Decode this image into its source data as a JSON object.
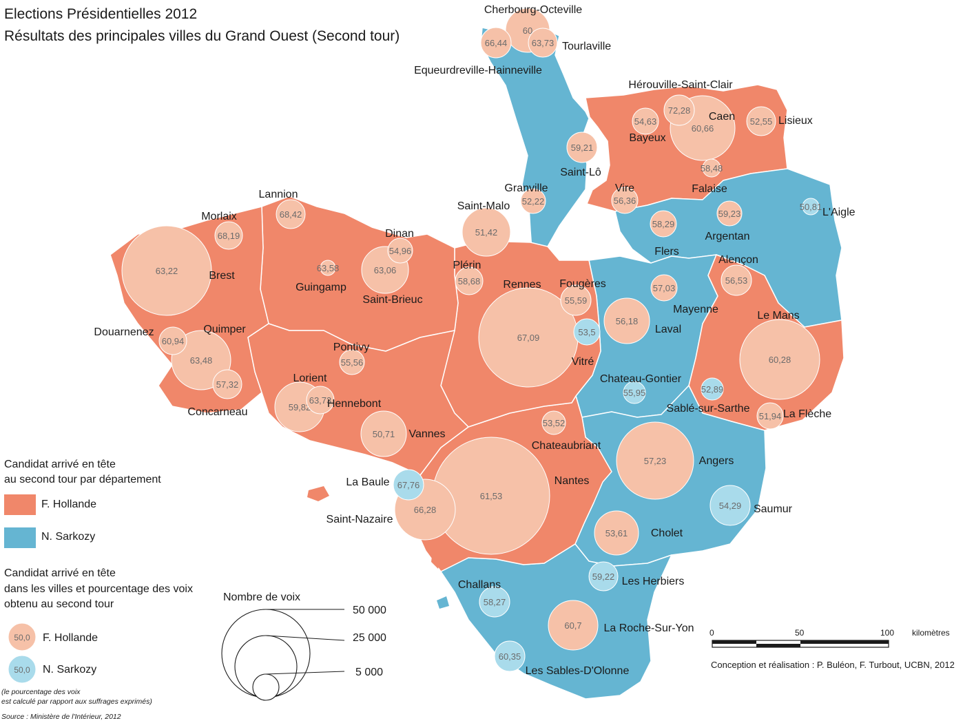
{
  "title": {
    "line1": "Elections Présidentielles 2012",
    "line2": "Résultats des principales villes du Grand Ouest (Second tour)"
  },
  "colors": {
    "hollande_dept": "#f0876a",
    "sarkozy_dept": "#65b5d2",
    "hollande_city": "#f6c1a8",
    "sarkozy_city": "#a9dbeb"
  },
  "legend": {
    "dept_title_1": "Candidat arrivé en tête",
    "dept_title_2": "au second tour par département",
    "hollande": "F. Hollande",
    "sarkozy": "N. Sarkozy",
    "city_title_1": "Candidat arrivé en tête",
    "city_title_2": "dans les villes et pourcentage des voix",
    "city_title_3": "obtenu au second tour",
    "sample_value": "50,0",
    "size_title": "Nombre de voix",
    "size_50000": "50 000",
    "size_25000": "25 000",
    "size_5000": "5 000"
  },
  "notes": {
    "pct_1": "(le pourcentage des voix",
    "pct_2": "est calculé par rapport aux suffrages exprimés)",
    "source": "Source : Ministère de l'Intérieur, 2012",
    "credit": "Conception et réalisation : P. Buléon, F. Turbout, UCBN, 2012"
  },
  "scale": {
    "tick_0": "0",
    "tick_50": "50",
    "tick_100": "100",
    "unit": "kilomètres"
  },
  "cities": [
    {
      "name": "Cherbourg-Octeville",
      "value": "60",
      "winner": "hollande"
    },
    {
      "name": "Equeurdreville-Hainneville",
      "value": "66,44",
      "winner": "hollande"
    },
    {
      "name": "Tourlaville",
      "value": "63,73",
      "winner": "hollande"
    },
    {
      "name": "Hérouville-Saint-Clair",
      "value": "72,28",
      "winner": "hollande"
    },
    {
      "name": "Caen",
      "value": "60,66",
      "winner": "hollande"
    },
    {
      "name": "Bayeux",
      "value": "54,63",
      "winner": "hollande"
    },
    {
      "name": "Lisieux",
      "value": "52,55",
      "winner": "hollande"
    },
    {
      "name": "Saint-Lô",
      "value": "59,21",
      "winner": "hollande"
    },
    {
      "name": "Falaise",
      "value": "58,48",
      "winner": "hollande"
    },
    {
      "name": "Vire",
      "value": "56,36",
      "winner": "hollande"
    },
    {
      "name": "Granville",
      "value": "52,22",
      "winner": "hollande"
    },
    {
      "name": "Argentan",
      "value": "59,23",
      "winner": "hollande"
    },
    {
      "name": "L'Aigle",
      "value": "50,81",
      "winner": "sarkozy"
    },
    {
      "name": "Flers",
      "value": "58,29",
      "winner": "hollande"
    },
    {
      "name": "Alençon",
      "value": "56,53",
      "winner": "hollande"
    },
    {
      "name": "Mayenne",
      "value": "57,03",
      "winner": "hollande"
    },
    {
      "name": "Laval",
      "value": "56,18",
      "winner": "hollande"
    },
    {
      "name": "Le Mans",
      "value": "60,28",
      "winner": "hollande"
    },
    {
      "name": "Sablé-sur-Sarthe",
      "value": "52,89",
      "winner": "sarkozy"
    },
    {
      "name": "La Flèche",
      "value": "51,94",
      "winner": "hollande"
    },
    {
      "name": "Chateau-Gontier",
      "value": "55,95",
      "winner": "sarkozy"
    },
    {
      "name": "Angers",
      "value": "57,23",
      "winner": "hollande"
    },
    {
      "name": "Saumur",
      "value": "54,29",
      "winner": "sarkozy"
    },
    {
      "name": "Cholet",
      "value": "53,61",
      "winner": "hollande"
    },
    {
      "name": "Les Herbiers",
      "value": "59,22",
      "winner": "sarkozy"
    },
    {
      "name": "La Roche-Sur-Yon",
      "value": "60,7",
      "winner": "hollande"
    },
    {
      "name": "Challans",
      "value": "58,27",
      "winner": "sarkozy"
    },
    {
      "name": "Les Sables-D'Olonne",
      "value": "60,35",
      "winner": "sarkozy"
    },
    {
      "name": "Nantes",
      "value": "61,53",
      "winner": "hollande"
    },
    {
      "name": "Saint-Nazaire",
      "value": "66,28",
      "winner": "hollande"
    },
    {
      "name": "La Baule",
      "value": "67,76",
      "winner": "sarkozy"
    },
    {
      "name": "Chateaubriant",
      "value": "53,52",
      "winner": "hollande"
    },
    {
      "name": "Rennes",
      "value": "67,09",
      "winner": "hollande"
    },
    {
      "name": "Fougères",
      "value": "55,59",
      "winner": "hollande"
    },
    {
      "name": "Vitré",
      "value": "53,5",
      "winner": "sarkozy"
    },
    {
      "name": "Saint-Malo",
      "value": "51,42",
      "winner": "hollande"
    },
    {
      "name": "Plérin",
      "value": "58,68",
      "winner": "hollande"
    },
    {
      "name": "Dinan",
      "value": "54,96",
      "winner": "hollande"
    },
    {
      "name": "Saint-Brieuc",
      "value": "63,06",
      "winner": "hollande"
    },
    {
      "name": "Guingamp",
      "value": "63,58",
      "winner": "hollande"
    },
    {
      "name": "Lannion",
      "value": "68,42",
      "winner": "hollande"
    },
    {
      "name": "Morlaix",
      "value": "68,19",
      "winner": "hollande"
    },
    {
      "name": "Brest",
      "value": "63,22",
      "winner": "hollande"
    },
    {
      "name": "Douarnenez",
      "value": "60,94",
      "winner": "hollande"
    },
    {
      "name": "Quimper",
      "value": "63,48",
      "winner": "hollande"
    },
    {
      "name": "Concarneau",
      "value": "57,32",
      "winner": "hollande"
    },
    {
      "name": "Pontivy",
      "value": "55,56",
      "winner": "hollande"
    },
    {
      "name": "Lorient",
      "value": "59,82",
      "winner": "hollande"
    },
    {
      "name": "Hennebont",
      "value": "63,73",
      "winner": "hollande"
    },
    {
      "name": "Vannes",
      "value": "50,71",
      "winner": "hollande"
    }
  ]
}
